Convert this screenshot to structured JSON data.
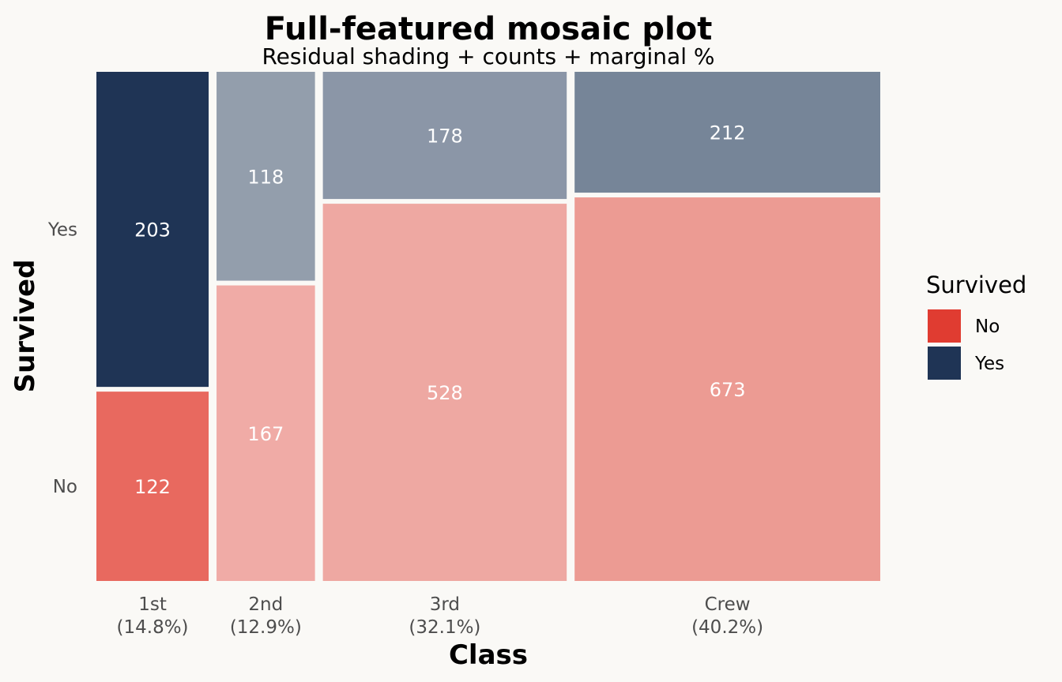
{
  "chart_data": {
    "type": "mosaic",
    "title": "Full-featured mosaic plot",
    "subtitle": "Residual shading + counts + marginal %",
    "xlabel": "Class",
    "ylabel": "Survived",
    "categories": [
      "1st",
      "2nd",
      "3rd",
      "Crew"
    ],
    "marginal_labels": [
      "(14.8%)",
      "(12.9%)",
      "(32.1%)",
      "(40.2%)"
    ],
    "marginal_fractions": [
      0.148,
      0.129,
      0.321,
      0.402
    ],
    "y_levels": [
      "No",
      "Yes"
    ],
    "y_tick_labels": [
      "No",
      "Yes"
    ],
    "series": [
      {
        "name": "No",
        "values": [
          122,
          167,
          528,
          673
        ],
        "colors": [
          "#e8695f",
          "#f0aba6",
          "#eea8a2",
          "#ec9b93"
        ]
      },
      {
        "name": "Yes",
        "values": [
          203,
          118,
          178,
          212
        ],
        "colors": [
          "#1f3455",
          "#939eac",
          "#8b96a7",
          "#768598"
        ]
      }
    ],
    "legend": {
      "title": "Survived",
      "position": "right",
      "items": [
        {
          "label": "No",
          "color": "#e03c31"
        },
        {
          "label": "Yes",
          "color": "#1f3455"
        }
      ]
    }
  }
}
